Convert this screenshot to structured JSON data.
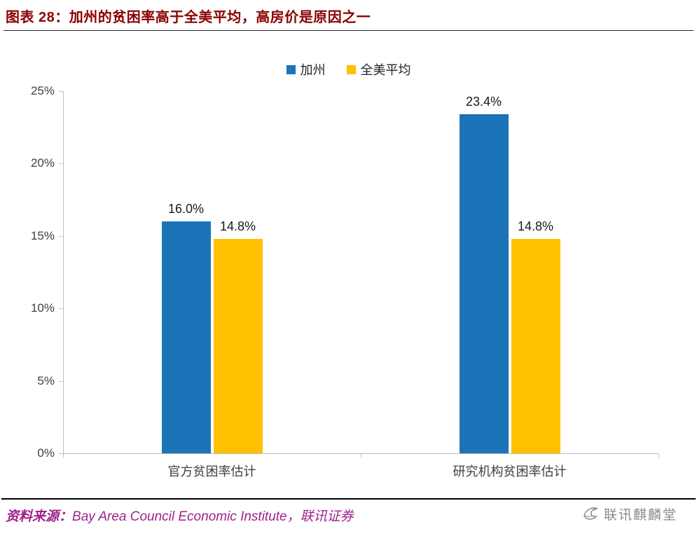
{
  "title": "图表 28：加州的贫困率高于全美平均，高房价是原因之一",
  "source": {
    "label": "资料来源：",
    "text": "Bay Area Council Economic Institute，联讯证券"
  },
  "watermark": {
    "text": "联讯麒麟堂",
    "logo_icon": "qilin-bird-logo"
  },
  "colors": {
    "title": "#8B0000",
    "source": "#A0218C",
    "axis": "#BFBFBF",
    "series_blue": "#1B74B8",
    "series_gold": "#FFC000"
  },
  "chart_data": {
    "type": "bar",
    "title": "",
    "categories": [
      "官方贫困率估计",
      "研究机构贫困率估计"
    ],
    "series": [
      {
        "name": "加州",
        "color": "#1B74B8",
        "values": [
          16.0,
          23.4
        ],
        "data_labels": [
          "16.0%",
          "23.4%"
        ]
      },
      {
        "name": "全美平均",
        "color": "#FFC000",
        "values": [
          14.8,
          14.8
        ],
        "data_labels": [
          "14.8%",
          "14.8%"
        ]
      }
    ],
    "ylim": [
      0,
      25
    ],
    "ytick_labels": [
      "0%",
      "5%",
      "10%",
      "15%",
      "20%",
      "25%"
    ],
    "grid": false,
    "legend_position": "top",
    "xlabel": "",
    "ylabel": ""
  }
}
